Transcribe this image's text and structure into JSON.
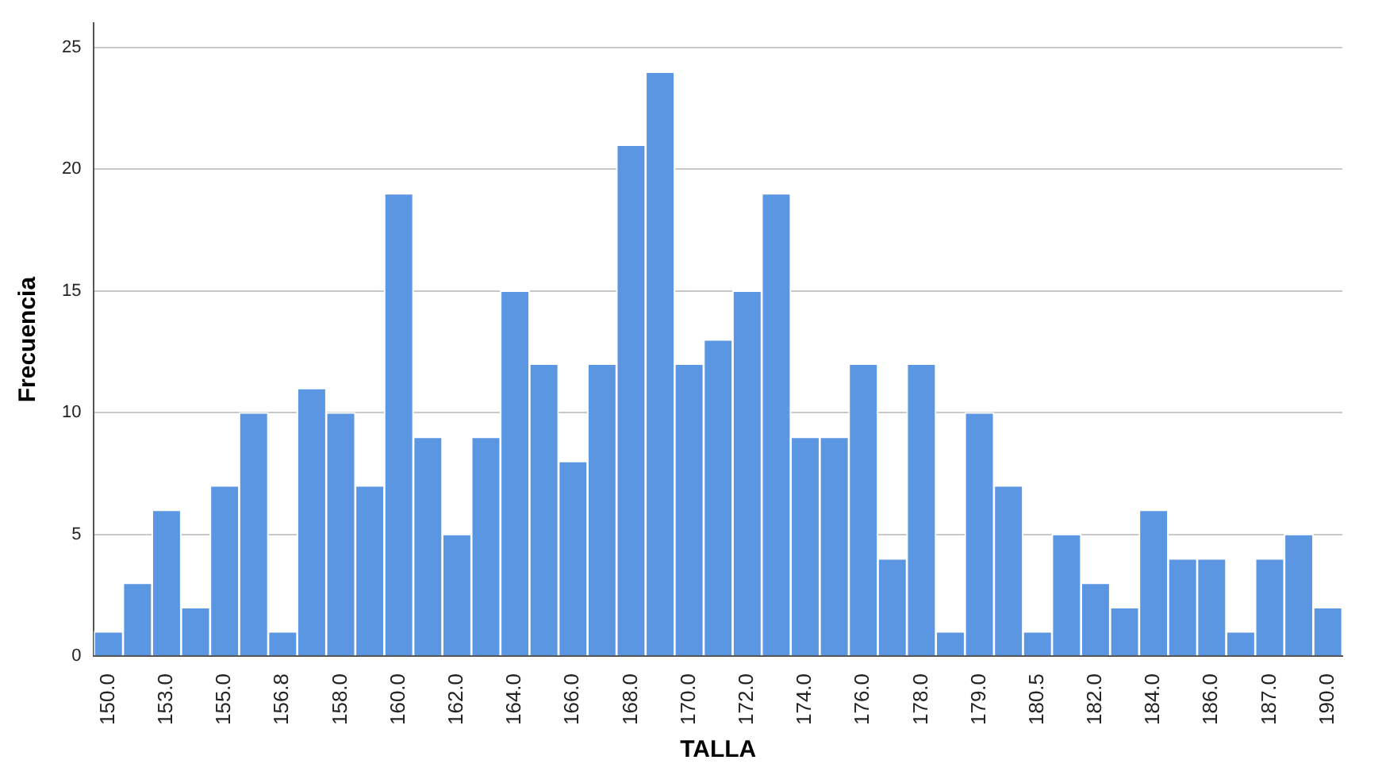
{
  "chart_data": {
    "type": "bar",
    "xlabel": "TALLA",
    "ylabel": "Frecuencia",
    "categories": [
      "150.0",
      null,
      "153.0",
      null,
      "155.0",
      null,
      "156.8",
      null,
      "158.0",
      null,
      "160.0",
      null,
      "162.0",
      null,
      "164.0",
      null,
      "166.0",
      null,
      "168.0",
      null,
      "170.0",
      null,
      "172.0",
      null,
      "174.0",
      null,
      "176.0",
      null,
      "178.0",
      null,
      "179.0",
      null,
      "180.5",
      null,
      "182.0",
      null,
      "184.0",
      null,
      "186.0",
      null,
      "187.0",
      null,
      "190.0"
    ],
    "values": [
      1,
      3,
      6,
      2,
      7,
      10,
      1,
      11,
      10,
      7,
      19,
      9,
      5,
      9,
      15,
      12,
      8,
      12,
      21,
      24,
      12,
      13,
      15,
      19,
      9,
      9,
      12,
      4,
      12,
      1,
      10,
      7,
      1,
      5,
      3,
      2,
      6,
      4,
      4,
      1,
      4,
      5,
      2
    ],
    "color": "#5b96e3",
    "ylim": [
      0,
      26
    ],
    "yticks": [
      0,
      5,
      10,
      15,
      20,
      25
    ],
    "grid": "y",
    "legend": false
  }
}
